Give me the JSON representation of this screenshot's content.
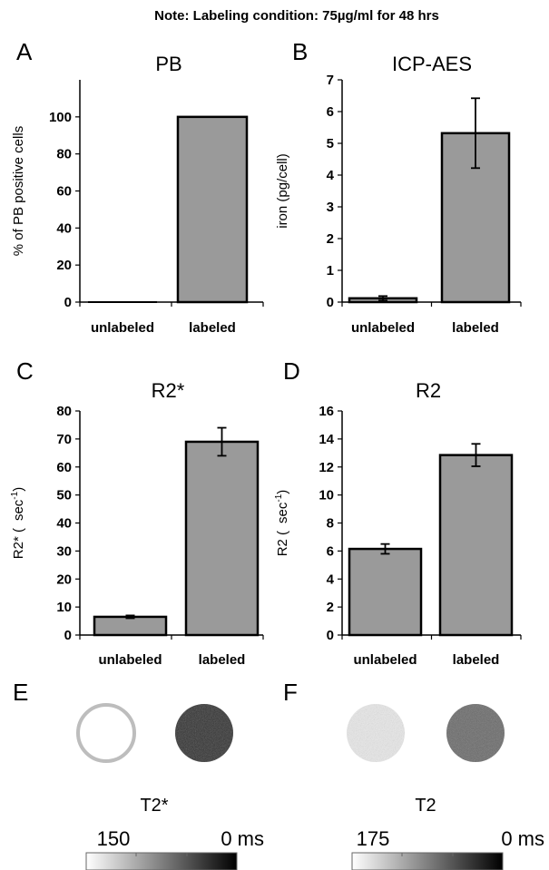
{
  "note": "Note: Labeling condition: 75µg/ml for 48 hrs",
  "chart_data": [
    {
      "panel": "A",
      "type": "bar",
      "title": "PB",
      "ylabel": "% of PB positive cells",
      "categories": [
        "unlabeled",
        "labeled"
      ],
      "values": [
        0,
        100
      ],
      "ylim": [
        0,
        120
      ],
      "yticks": [
        0,
        20,
        40,
        60,
        80,
        100
      ],
      "bar_color": "#9a9a9a"
    },
    {
      "panel": "B",
      "type": "bar",
      "title": "ICP-AES",
      "ylabel": "iron (pg/cell)",
      "categories": [
        "unlabeled",
        "labeled"
      ],
      "values": [
        0.12,
        5.32
      ],
      "errors": [
        0.07,
        1.1
      ],
      "ylim": [
        0,
        7
      ],
      "yticks": [
        0,
        1,
        2,
        3,
        4,
        5,
        6,
        7
      ],
      "bar_color": "#9a9a9a"
    },
    {
      "panel": "C",
      "type": "bar",
      "title": "R2*",
      "ylabel_main": "R2* (",
      "ylabel_unit": "sec",
      "ylabel_sup": "-1",
      "ylabel_close": ")",
      "categories": [
        "unlabeled",
        "labeled"
      ],
      "values": [
        6.5,
        69
      ],
      "errors": [
        0.5,
        5
      ],
      "ylim": [
        0,
        80
      ],
      "yticks": [
        0,
        10,
        20,
        30,
        40,
        50,
        60,
        70,
        80
      ],
      "bar_color": "#9a9a9a"
    },
    {
      "panel": "D",
      "type": "bar",
      "title": "R2",
      "ylabel_main": "R2 (",
      "ylabel_unit": "sec",
      "ylabel_sup": "-1",
      "ylabel_close": ")",
      "categories": [
        "unlabeled",
        "labeled"
      ],
      "values": [
        6.15,
        12.85
      ],
      "errors": [
        0.35,
        0.8
      ],
      "ylim": [
        0,
        16
      ],
      "yticks": [
        0,
        2,
        4,
        6,
        8,
        10,
        12,
        14,
        16
      ],
      "bar_color": "#9a9a9a"
    }
  ],
  "mri": [
    {
      "panel": "E",
      "label": "T2*",
      "scale_max": "150",
      "scale_min": "0 ms",
      "unlabeled_fill": "#ffffff",
      "unlabeled_ring": "#b8b8b8",
      "labeled_fill": "#333333"
    },
    {
      "panel": "F",
      "label": "T2",
      "scale_max": "175",
      "scale_min": "0 ms",
      "unlabeled_fill": "#e6e6e6",
      "unlabeled_ring": "#e6e6e6",
      "labeled_fill": "#6a6a6a"
    }
  ]
}
